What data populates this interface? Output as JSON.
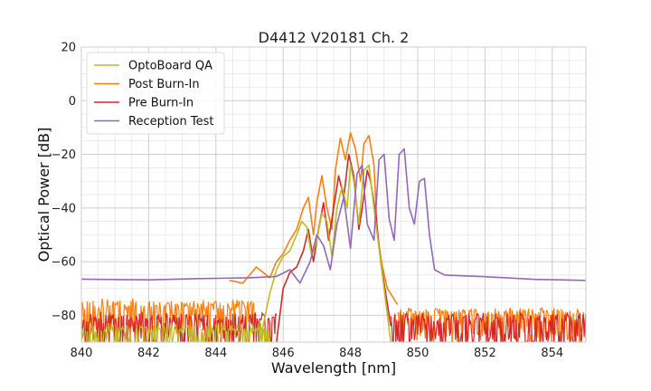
{
  "chart_data": {
    "type": "line",
    "title": "D4412 V20181 Ch. 2",
    "xlabel": "Wavelength [nm]",
    "ylabel": "Optical Power [dB]",
    "xlim": [
      840,
      855
    ],
    "ylim": [
      -90,
      20
    ],
    "xticks": [
      840,
      842,
      844,
      846,
      848,
      850,
      852,
      854
    ],
    "yticks": [
      20,
      0,
      -20,
      -40,
      -60,
      -80
    ],
    "x_minor_step": 0.5,
    "y_minor_step": 5,
    "grid": true,
    "legend_position": "top-left",
    "series": [
      {
        "name": "OptoBoard QA",
        "color": "#bcbd22",
        "noise_floor": {
          "range": [
            840,
            845.6
          ],
          "level": -85,
          "depth": 5,
          "seed": 11
        },
        "noise_floor_right": null,
        "baseline": -72,
        "points": [
          [
            845.3,
            -90
          ],
          [
            845.6,
            -72
          ],
          [
            845.8,
            -63
          ],
          [
            846.0,
            -58
          ],
          [
            846.2,
            -56
          ],
          [
            846.4,
            -50
          ],
          [
            846.55,
            -45
          ],
          [
            846.7,
            -47
          ],
          [
            846.85,
            -58
          ],
          [
            847.0,
            -52
          ],
          [
            847.15,
            -42
          ],
          [
            847.3,
            -45
          ],
          [
            847.45,
            -58
          ],
          [
            847.6,
            -40
          ],
          [
            847.75,
            -32
          ],
          [
            847.9,
            -40
          ],
          [
            848.0,
            -24
          ],
          [
            848.1,
            -30
          ],
          [
            848.25,
            -46
          ],
          [
            848.4,
            -26
          ],
          [
            848.55,
            -24
          ],
          [
            848.7,
            -40
          ],
          [
            848.85,
            -55
          ],
          [
            849.0,
            -70
          ],
          [
            849.2,
            -90
          ]
        ]
      },
      {
        "name": "Post Burn-In",
        "color": "#ff7f0e",
        "noise_floor": {
          "range": [
            840,
            845.2
          ],
          "level": -76,
          "depth": 8,
          "seed": 23
        },
        "noise_floor_right": {
          "range": [
            849.4,
            855
          ],
          "level": -79,
          "depth": 8,
          "seed": 29
        },
        "baseline": -72,
        "points": [
          [
            844.4,
            -67
          ],
          [
            844.8,
            -68
          ],
          [
            845.0,
            -65
          ],
          [
            845.2,
            -62
          ],
          [
            845.4,
            -64
          ],
          [
            845.6,
            -66
          ],
          [
            845.8,
            -60
          ],
          [
            846.0,
            -57
          ],
          [
            846.2,
            -52
          ],
          [
            846.4,
            -48
          ],
          [
            846.6,
            -40
          ],
          [
            846.75,
            -36
          ],
          [
            846.9,
            -50
          ],
          [
            847.0,
            -38
          ],
          [
            847.15,
            -28
          ],
          [
            847.3,
            -40
          ],
          [
            847.45,
            -48
          ],
          [
            847.55,
            -26
          ],
          [
            847.7,
            -14
          ],
          [
            847.85,
            -22
          ],
          [
            848.0,
            -12
          ],
          [
            848.15,
            -18
          ],
          [
            848.3,
            -30
          ],
          [
            848.4,
            -16
          ],
          [
            848.55,
            -13
          ],
          [
            848.7,
            -24
          ],
          [
            848.8,
            -50
          ],
          [
            848.95,
            -62
          ],
          [
            849.1,
            -70
          ],
          [
            849.4,
            -76
          ]
        ]
      },
      {
        "name": "Pre Burn-In",
        "color": "#d62728",
        "noise_floor": {
          "range": [
            840,
            845.8
          ],
          "level": -81,
          "depth": 9,
          "seed": 37
        },
        "noise_floor_right": {
          "range": [
            849.2,
            855
          ],
          "level": -81,
          "depth": 9,
          "seed": 41
        },
        "baseline": -72,
        "points": [
          [
            845.8,
            -90
          ],
          [
            846.0,
            -70
          ],
          [
            846.2,
            -64
          ],
          [
            846.4,
            -62
          ],
          [
            846.6,
            -56
          ],
          [
            846.75,
            -48
          ],
          [
            846.9,
            -60
          ],
          [
            847.05,
            -48
          ],
          [
            847.2,
            -38
          ],
          [
            847.35,
            -52
          ],
          [
            847.5,
            -40
          ],
          [
            847.65,
            -28
          ],
          [
            847.8,
            -36
          ],
          [
            847.95,
            -20
          ],
          [
            848.1,
            -28
          ],
          [
            848.25,
            -48
          ],
          [
            848.35,
            -40
          ],
          [
            848.5,
            -26
          ],
          [
            848.6,
            -30
          ],
          [
            848.75,
            -42
          ],
          [
            848.9,
            -60
          ],
          [
            849.05,
            -72
          ],
          [
            849.2,
            -84
          ]
        ]
      },
      {
        "name": "Reception Test",
        "color": "#9467bd",
        "noise_floor": null,
        "noise_floor_right": null,
        "baseline": null,
        "points": [
          [
            840.0,
            -66.5
          ],
          [
            842.0,
            -66.8
          ],
          [
            843.5,
            -66.3
          ],
          [
            845.0,
            -66.0
          ],
          [
            845.8,
            -65.5
          ],
          [
            846.2,
            -63.0
          ],
          [
            846.5,
            -68.0
          ],
          [
            846.8,
            -60.0
          ],
          [
            847.0,
            -50.0
          ],
          [
            847.2,
            -54.0
          ],
          [
            847.4,
            -63.0
          ],
          [
            847.6,
            -46.0
          ],
          [
            847.8,
            -36.0
          ],
          [
            848.0,
            -55.0
          ],
          [
            848.2,
            -27.0
          ],
          [
            848.35,
            -24.0
          ],
          [
            848.5,
            -46.0
          ],
          [
            848.7,
            -52.0
          ],
          [
            848.85,
            -22.0
          ],
          [
            849.0,
            -20.0
          ],
          [
            849.15,
            -44.0
          ],
          [
            849.3,
            -52.0
          ],
          [
            849.45,
            -20.0
          ],
          [
            849.6,
            -18.0
          ],
          [
            849.75,
            -40.0
          ],
          [
            849.9,
            -46.0
          ],
          [
            850.05,
            -30.0
          ],
          [
            850.2,
            -29.0
          ],
          [
            850.35,
            -50.0
          ],
          [
            850.5,
            -63.0
          ],
          [
            850.8,
            -65.0
          ],
          [
            852.0,
            -65.6
          ],
          [
            853.5,
            -66.6
          ],
          [
            855.0,
            -67.0
          ]
        ]
      }
    ]
  }
}
